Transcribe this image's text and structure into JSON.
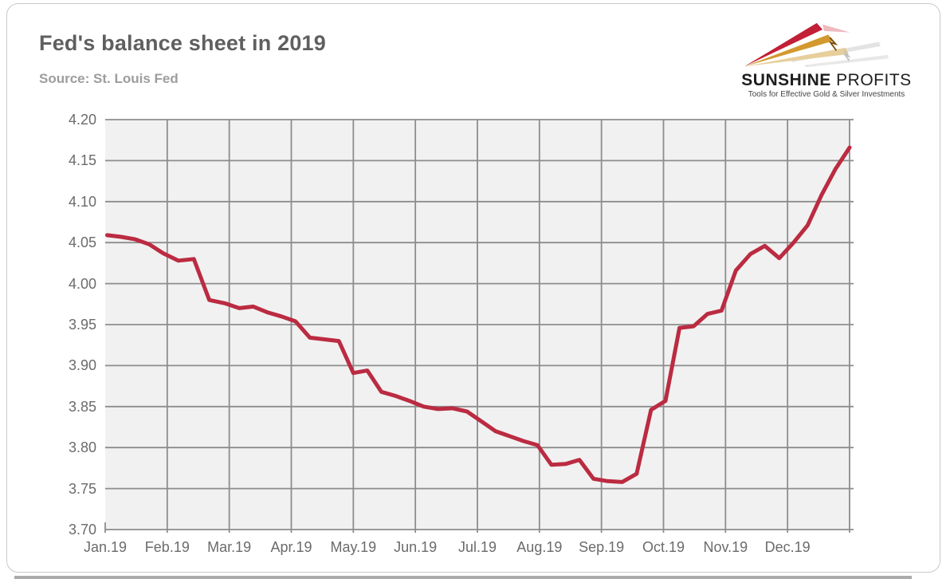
{
  "header": {
    "title": "Fed's balance sheet in 2019",
    "source": "Source: St. Louis Fed"
  },
  "logo": {
    "brand_bold": "SUNSHINE",
    "brand_light": "PROFITS",
    "tagline": "Tools for Effective Gold & Silver Investments",
    "colors": {
      "red": "#c21f38",
      "gold": "#d3992e",
      "pale_gold": "#e7cf9b"
    }
  },
  "chart_data": {
    "type": "line",
    "title": "Fed's balance sheet in 2019",
    "xlabel": "",
    "ylabel": "",
    "ylim": [
      3.7,
      4.2
    ],
    "y_tick_step": 0.05,
    "grid": true,
    "legend": false,
    "colors": {
      "line": "#bb2b41",
      "grid": "#8d8d8d",
      "plot_bg": "#f1f1f1",
      "title": "#5f5f5f",
      "source": "#9d9d9d",
      "axis_labels": "#6b6b6b"
    },
    "x_tick_labels": [
      "Jan.19",
      "Feb.19",
      "Mar.19",
      "Apr.19",
      "May.19",
      "Jun.19",
      "Jul.19",
      "Aug.19",
      "Sep.19",
      "Oct.19",
      "Nov.19",
      "Dec.19"
    ],
    "points": [
      {
        "date": "2019-01-02",
        "value": 4.059
      },
      {
        "date": "2019-01-09",
        "value": 4.057
      },
      {
        "date": "2019-01-16",
        "value": 4.054
      },
      {
        "date": "2019-01-23",
        "value": 4.048
      },
      {
        "date": "2019-01-30",
        "value": 4.037
      },
      {
        "date": "2019-02-06",
        "value": 4.028
      },
      {
        "date": "2019-02-13",
        "value": 4.03
      },
      {
        "date": "2019-02-20",
        "value": 3.98
      },
      {
        "date": "2019-02-27",
        "value": 3.976
      },
      {
        "date": "2019-03-06",
        "value": 3.97
      },
      {
        "date": "2019-03-13",
        "value": 3.972
      },
      {
        "date": "2019-03-20",
        "value": 3.965
      },
      {
        "date": "2019-03-27",
        "value": 3.96
      },
      {
        "date": "2019-04-03",
        "value": 3.954
      },
      {
        "date": "2019-04-10",
        "value": 3.934
      },
      {
        "date": "2019-04-17",
        "value": 3.932
      },
      {
        "date": "2019-04-24",
        "value": 3.93
      },
      {
        "date": "2019-05-01",
        "value": 3.891
      },
      {
        "date": "2019-05-08",
        "value": 3.894
      },
      {
        "date": "2019-05-15",
        "value": 3.868
      },
      {
        "date": "2019-05-22",
        "value": 3.863
      },
      {
        "date": "2019-05-29",
        "value": 3.857
      },
      {
        "date": "2019-06-05",
        "value": 3.85
      },
      {
        "date": "2019-06-12",
        "value": 3.847
      },
      {
        "date": "2019-06-19",
        "value": 3.848
      },
      {
        "date": "2019-06-26",
        "value": 3.844
      },
      {
        "date": "2019-07-03",
        "value": 3.832
      },
      {
        "date": "2019-07-10",
        "value": 3.82
      },
      {
        "date": "2019-07-17",
        "value": 3.814
      },
      {
        "date": "2019-07-24",
        "value": 3.808
      },
      {
        "date": "2019-07-31",
        "value": 3.803
      },
      {
        "date": "2019-08-07",
        "value": 3.779
      },
      {
        "date": "2019-08-14",
        "value": 3.78
      },
      {
        "date": "2019-08-21",
        "value": 3.785
      },
      {
        "date": "2019-08-28",
        "value": 3.762
      },
      {
        "date": "2019-09-04",
        "value": 3.759
      },
      {
        "date": "2019-09-11",
        "value": 3.758
      },
      {
        "date": "2019-09-18",
        "value": 3.768
      },
      {
        "date": "2019-09-25",
        "value": 3.846
      },
      {
        "date": "2019-10-02",
        "value": 3.857
      },
      {
        "date": "2019-10-09",
        "value": 3.946
      },
      {
        "date": "2019-10-16",
        "value": 3.948
      },
      {
        "date": "2019-10-23",
        "value": 3.963
      },
      {
        "date": "2019-10-30",
        "value": 3.967
      },
      {
        "date": "2019-11-06",
        "value": 4.016
      },
      {
        "date": "2019-11-13",
        "value": 4.036
      },
      {
        "date": "2019-11-20",
        "value": 4.046
      },
      {
        "date": "2019-11-27",
        "value": 4.031
      },
      {
        "date": "2019-12-04",
        "value": 4.05
      },
      {
        "date": "2019-12-11",
        "value": 4.071
      },
      {
        "date": "2019-12-18",
        "value": 4.108
      },
      {
        "date": "2019-12-25",
        "value": 4.14
      },
      {
        "date": "2020-01-01",
        "value": 4.166
      }
    ]
  }
}
